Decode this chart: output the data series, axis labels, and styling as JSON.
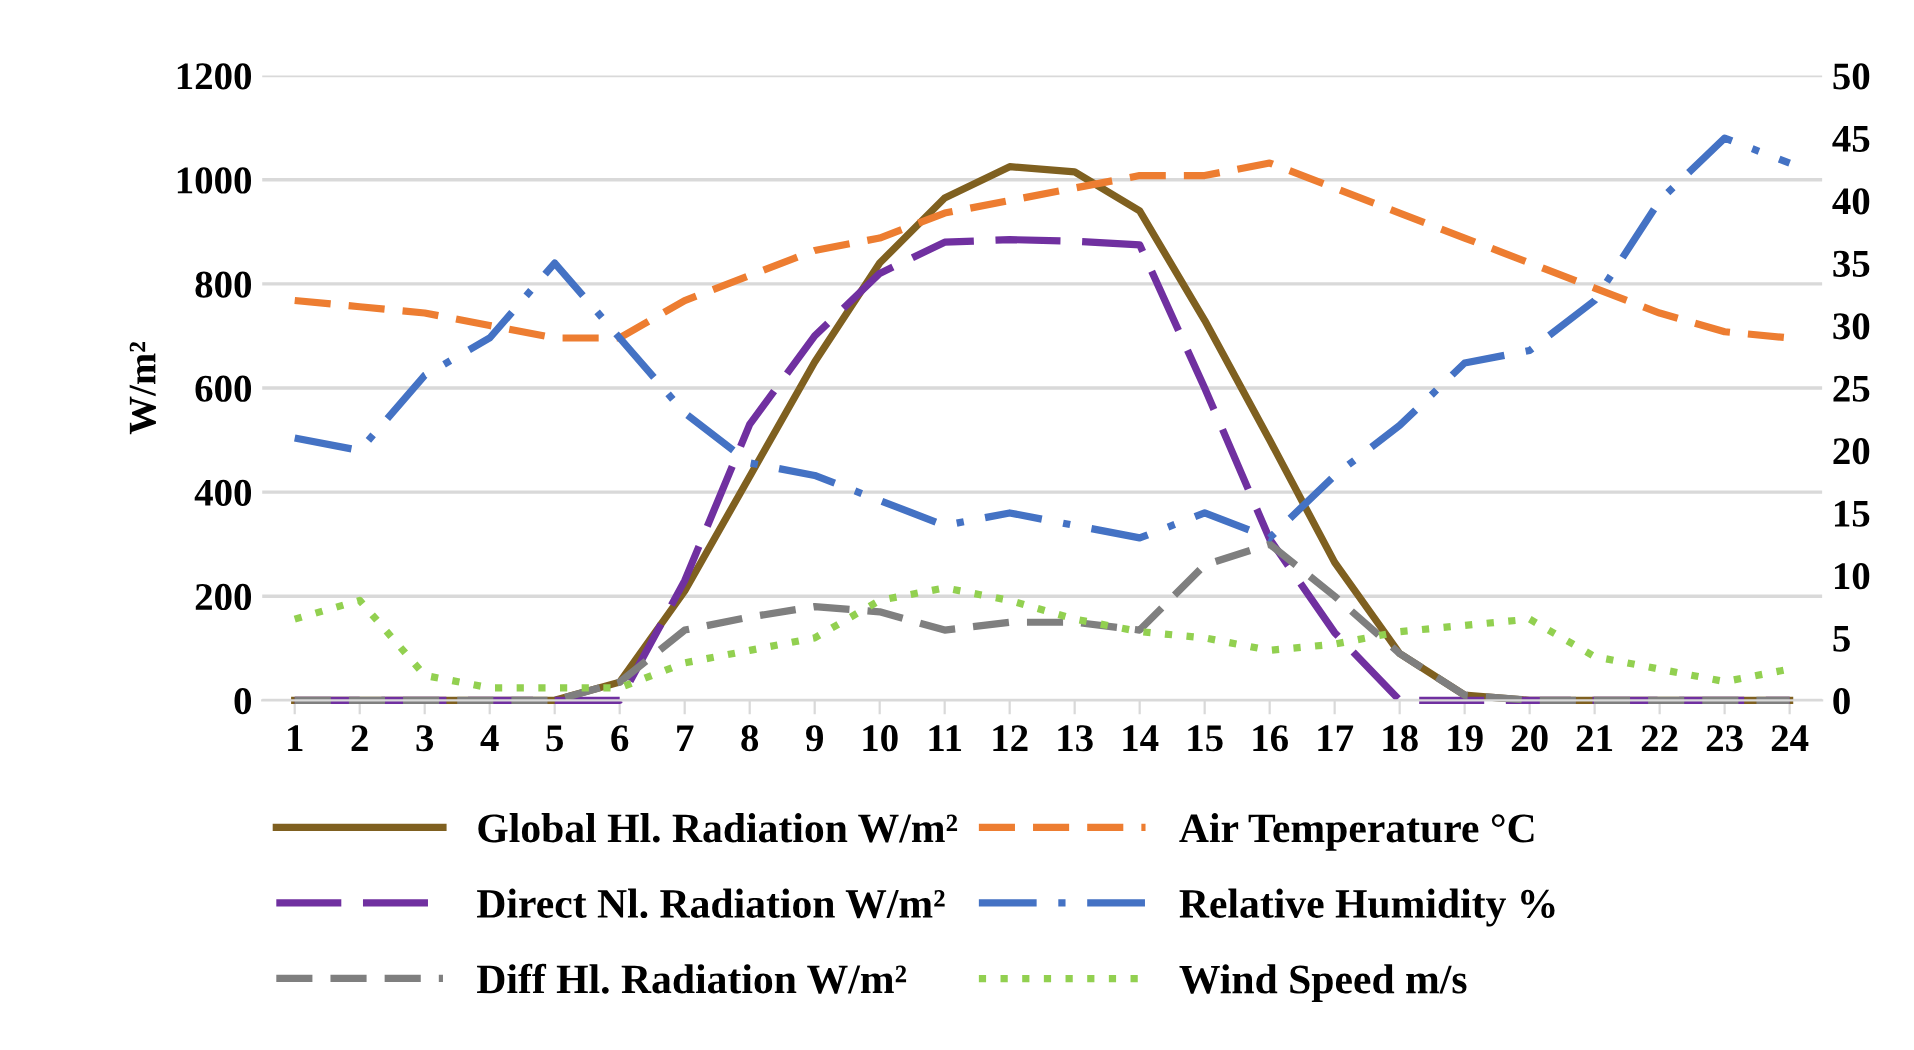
{
  "chart_data": {
    "type": "line",
    "ylabel": "W/m²",
    "categories": [
      "1",
      "2",
      "3",
      "4",
      "5",
      "6",
      "7",
      "8",
      "9",
      "10",
      "11",
      "12",
      "13",
      "14",
      "15",
      "16",
      "17",
      "18",
      "19",
      "20",
      "21",
      "22",
      "23",
      "24"
    ],
    "ylim": [
      0,
      1200
    ],
    "yticks": [
      0,
      200,
      400,
      600,
      800,
      1000,
      1200
    ],
    "y2lim": [
      0,
      50
    ],
    "y2ticks": [
      0,
      5,
      10,
      15,
      20,
      25,
      30,
      35,
      40,
      45,
      50
    ],
    "grid": "y",
    "legend": "bottom",
    "marker": "none",
    "series": [
      {
        "name": "Global Hl. Radiation W/m²",
        "color": "#7f6020",
        "line_style": "solid",
        "values": [
          0,
          0,
          0,
          0,
          0,
          35,
          210,
          430,
          650,
          840,
          965,
          1025,
          1015,
          940,
          730,
          500,
          265,
          90,
          10,
          0,
          0,
          0,
          0,
          0
        ]
      },
      {
        "name": "Direct Nl. Radiation W/m²",
        "color": "#7030a0",
        "line_style": "longdash",
        "values": [
          0,
          0,
          0,
          0,
          0,
          0,
          230,
          530,
          700,
          820,
          880,
          885,
          882,
          875,
          600,
          310,
          130,
          0,
          0,
          0,
          0,
          0,
          0,
          0
        ]
      },
      {
        "name": "Diff Hl. Radiation W/m²",
        "color": "#7f7f7f",
        "line_style": "dashed",
        "values": [
          0,
          0,
          0,
          0,
          0,
          35,
          135,
          160,
          180,
          170,
          135,
          150,
          150,
          135,
          260,
          300,
          200,
          90,
          10,
          0,
          0,
          0,
          0,
          0
        ]
      },
      {
        "name": "Air Temperature °C",
        "color": "#ed7d31",
        "line_style": "dashed",
        "axis": "y2",
        "values": [
          32,
          31.5,
          31,
          30,
          29,
          29,
          32,
          34,
          36,
          37,
          39,
          40,
          41,
          42,
          42,
          43,
          41,
          39,
          37,
          35,
          33,
          31,
          29.5,
          29
        ]
      },
      {
        "name": "Relative Humidity %",
        "color": "#4472c4",
        "line_style": "dashdot",
        "axis": "y2",
        "values": [
          21,
          20,
          26,
          29,
          35,
          29,
          23,
          19,
          18,
          16,
          14,
          15,
          14,
          13,
          15,
          13,
          18,
          22,
          27,
          28,
          32,
          40,
          45,
          43
        ]
      },
      {
        "name": "Wind Speed m/s",
        "color": "#92d050",
        "line_style": "dotted",
        "axis": "y2",
        "values": [
          6.5,
          8,
          2,
          1,
          1,
          1,
          3,
          4,
          5,
          8,
          9,
          8,
          6.5,
          5.5,
          5,
          4,
          4.5,
          5.5,
          6,
          6.5,
          3.5,
          2.5,
          1.5,
          2.5
        ]
      }
    ]
  }
}
